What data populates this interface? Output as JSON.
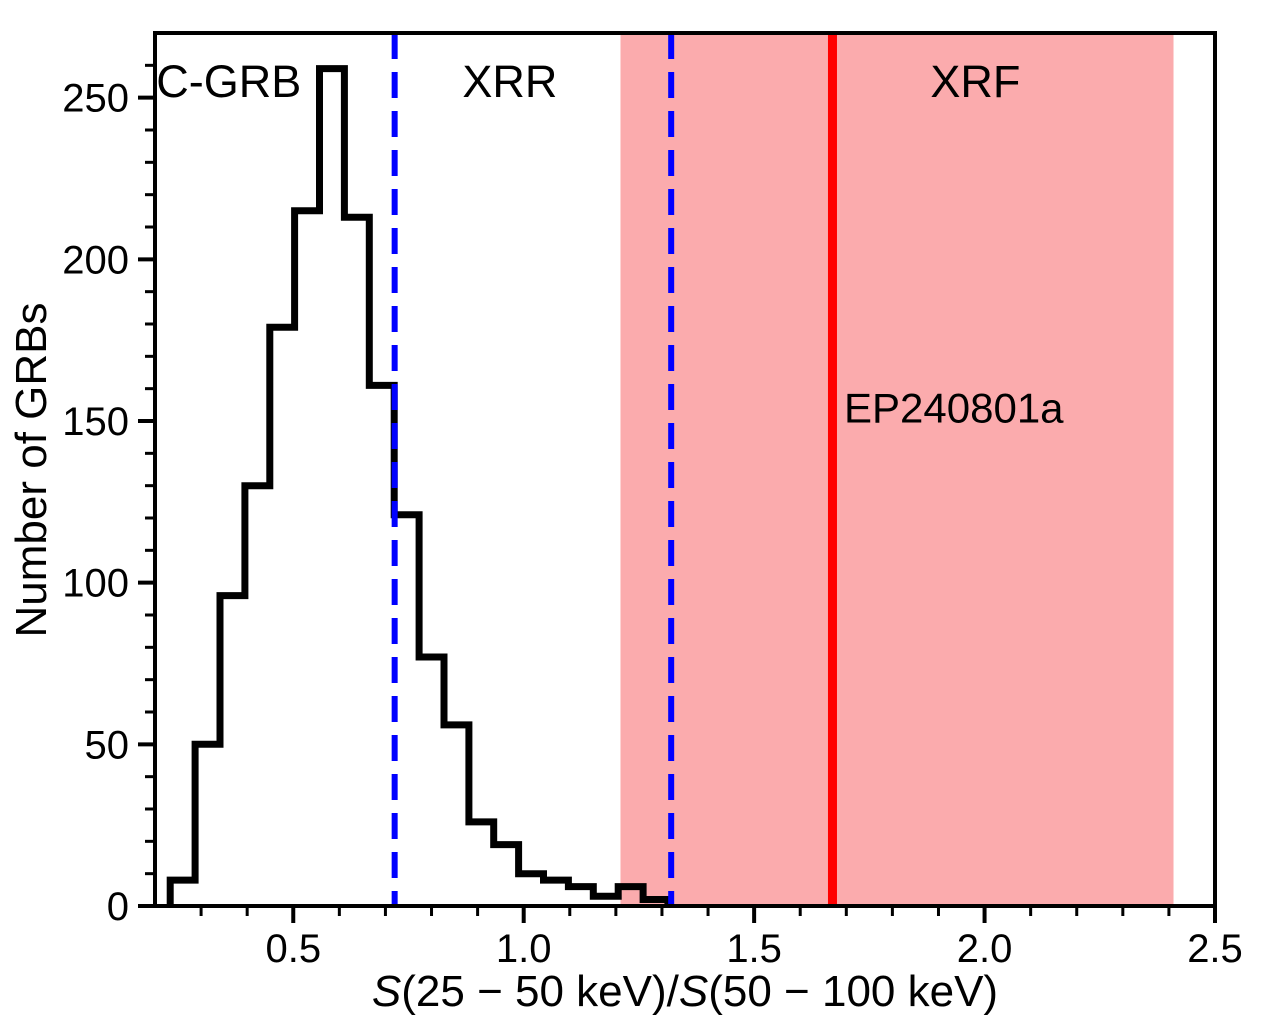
{
  "chart_data": {
    "type": "histogram",
    "title": "",
    "xlabel": "S(25 − 50 keV)/S(50 − 100 keV)",
    "xlabel_parts": [
      {
        "text": "S",
        "italic": true
      },
      {
        "text": "(25 − 50 keV)/",
        "italic": false
      },
      {
        "text": "S",
        "italic": true
      },
      {
        "text": "(50 − 100 keV)",
        "italic": false
      }
    ],
    "ylabel": "Number of GRBs",
    "xlim": [
      0.2,
      2.5
    ],
    "ylim": [
      0,
      270
    ],
    "x_major_ticks": [
      0.5,
      1.0,
      1.5,
      2.0,
      2.5
    ],
    "x_minor_tick_step": 0.1,
    "y_major_ticks": [
      0,
      50,
      100,
      150,
      200,
      250
    ],
    "y_minor_tick_step": 10,
    "grid": false,
    "legend_position": "none",
    "histogram_color": "#000000",
    "bin_edges": [
      0.233,
      0.287,
      0.341,
      0.395,
      0.449,
      0.503,
      0.557,
      0.611,
      0.665,
      0.719,
      0.773,
      0.827,
      0.881,
      0.935,
      0.989,
      1.043,
      1.097,
      1.151,
      1.205,
      1.259,
      1.313
    ],
    "counts": [
      8,
      50,
      96,
      130,
      179,
      215,
      259,
      213,
      161,
      121,
      77,
      56,
      26,
      19,
      10,
      8,
      6,
      3,
      6,
      2
    ],
    "region_labels": [
      {
        "label": "C-GRB",
        "x": 0.36,
        "y": 255,
        "color": "#000000"
      },
      {
        "label": "XRR",
        "x": 0.97,
        "y": 255,
        "color": "#000000"
      },
      {
        "label": "XRF",
        "x": 1.98,
        "y": 255,
        "color": "#000000"
      }
    ],
    "boundary_lines": [
      {
        "x": 0.72,
        "color": "#0000ff",
        "style": "dashed"
      },
      {
        "x": 1.32,
        "color": "#0000ff",
        "style": "dashed"
      }
    ],
    "event_line": {
      "x": 1.67,
      "color": "#ff0000",
      "style": "solid",
      "label": "EP240801a",
      "label_x": 1.695,
      "label_y": 154
    },
    "event_band": {
      "x0": 1.21,
      "x1": 2.41,
      "color": "#fbabad"
    }
  }
}
